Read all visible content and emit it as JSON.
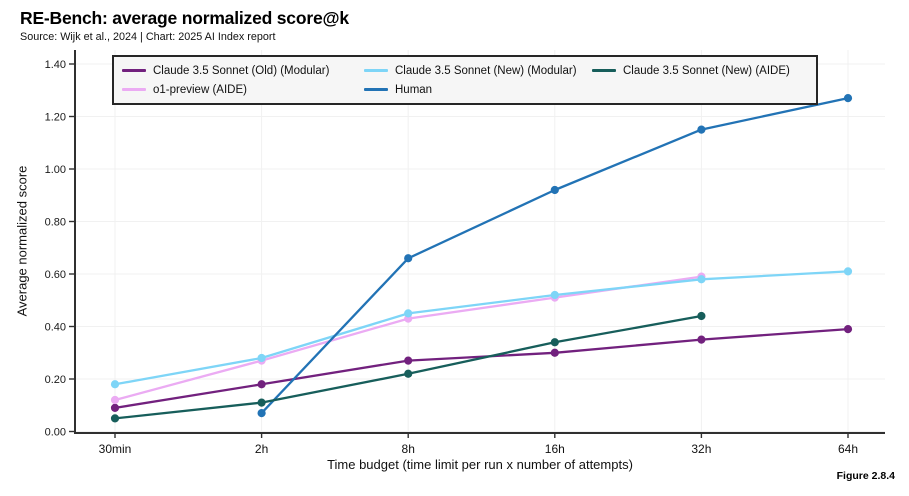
{
  "header": {
    "title": "RE-Bench: average normalized score@k",
    "subtitle": "Source: Wijk et al., 2024 | Chart: 2025 AI Index report"
  },
  "figure_label": "Figure 2.8.4",
  "chart_data": {
    "type": "line",
    "categories": [
      "30min",
      "2h",
      "8h",
      "16h",
      "32h",
      "64h"
    ],
    "series": [
      {
        "name": "Claude 3.5 Sonnet (Old) (Modular)",
        "color": "#72217e",
        "values": [
          0.09,
          0.18,
          0.27,
          0.3,
          0.35,
          0.39
        ]
      },
      {
        "name": "o1-preview (AIDE)",
        "color": "#ebabf3",
        "values": [
          0.12,
          0.27,
          0.43,
          0.51,
          0.59,
          null
        ]
      },
      {
        "name": "Claude 3.5 Sonnet (New) (Modular)",
        "color": "#7ed5f7",
        "values": [
          0.18,
          0.28,
          0.45,
          0.52,
          0.58,
          0.61
        ]
      },
      {
        "name": "Human",
        "color": "#2273b5",
        "values": [
          null,
          0.07,
          0.66,
          0.92,
          1.15,
          1.27
        ]
      },
      {
        "name": "Claude 3.5 Sonnet (New) (AIDE)",
        "color": "#175e5b",
        "values": [
          0.05,
          0.11,
          0.22,
          0.34,
          0.44,
          null
        ]
      }
    ],
    "xlabel": "Time budget (time limit per run x number of attempts)",
    "ylabel": "Average normalized score",
    "ylim": [
      0.0,
      1.4
    ],
    "ytick_step": 0.2,
    "ytick_labels": [
      "0.00",
      "0.20",
      "0.40",
      "0.60",
      "0.80",
      "1.00",
      "1.20",
      "1.40"
    ],
    "grid": true,
    "legend_position": "top",
    "legend_rows": [
      [
        0,
        2,
        4
      ],
      [
        1,
        3
      ]
    ]
  }
}
